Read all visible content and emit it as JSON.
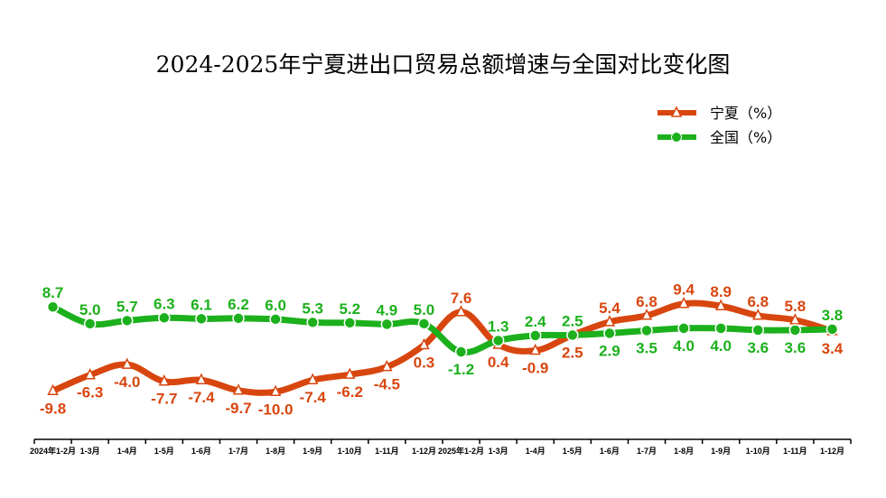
{
  "chart_data": {
    "type": "line",
    "title": "2024-2025年宁夏进出口贸易总额增速与全国对比变化图",
    "xlabel": "",
    "ylabel": "",
    "categories": [
      "2024年1-2月",
      "1-3月",
      "1-4月",
      "1-5月",
      "1-6月",
      "1-7月",
      "1-8月",
      "1-9月",
      "1-10月",
      "1-11月",
      "1-12月",
      "2025年1-2月",
      "1-3月",
      "1-4月",
      "1-5月",
      "1-6月",
      "1-7月",
      "1-8月",
      "1-9月",
      "1-10月",
      "1-11月",
      "1-12月"
    ],
    "series": [
      {
        "name": "宁夏（%）",
        "color": "#D8460F",
        "marker": "triangle",
        "values": [
          -9.8,
          -6.3,
          -4.0,
          -7.7,
          -7.4,
          -9.7,
          -10.0,
          -7.4,
          -6.2,
          -4.5,
          0.3,
          7.6,
          0.4,
          -0.9,
          2.5,
          5.4,
          6.8,
          9.4,
          8.9,
          6.8,
          5.8,
          3.4
        ]
      },
      {
        "name": "全国（%）",
        "color": "#1CB01C",
        "marker": "circle",
        "values": [
          8.7,
          5.0,
          5.7,
          6.3,
          6.1,
          6.2,
          6.0,
          5.3,
          5.2,
          4.9,
          5.0,
          -1.2,
          1.3,
          2.4,
          2.5,
          2.9,
          3.5,
          4.0,
          4.0,
          3.6,
          3.6,
          3.8
        ]
      }
    ],
    "grid": false,
    "legend_position": "top-right"
  }
}
